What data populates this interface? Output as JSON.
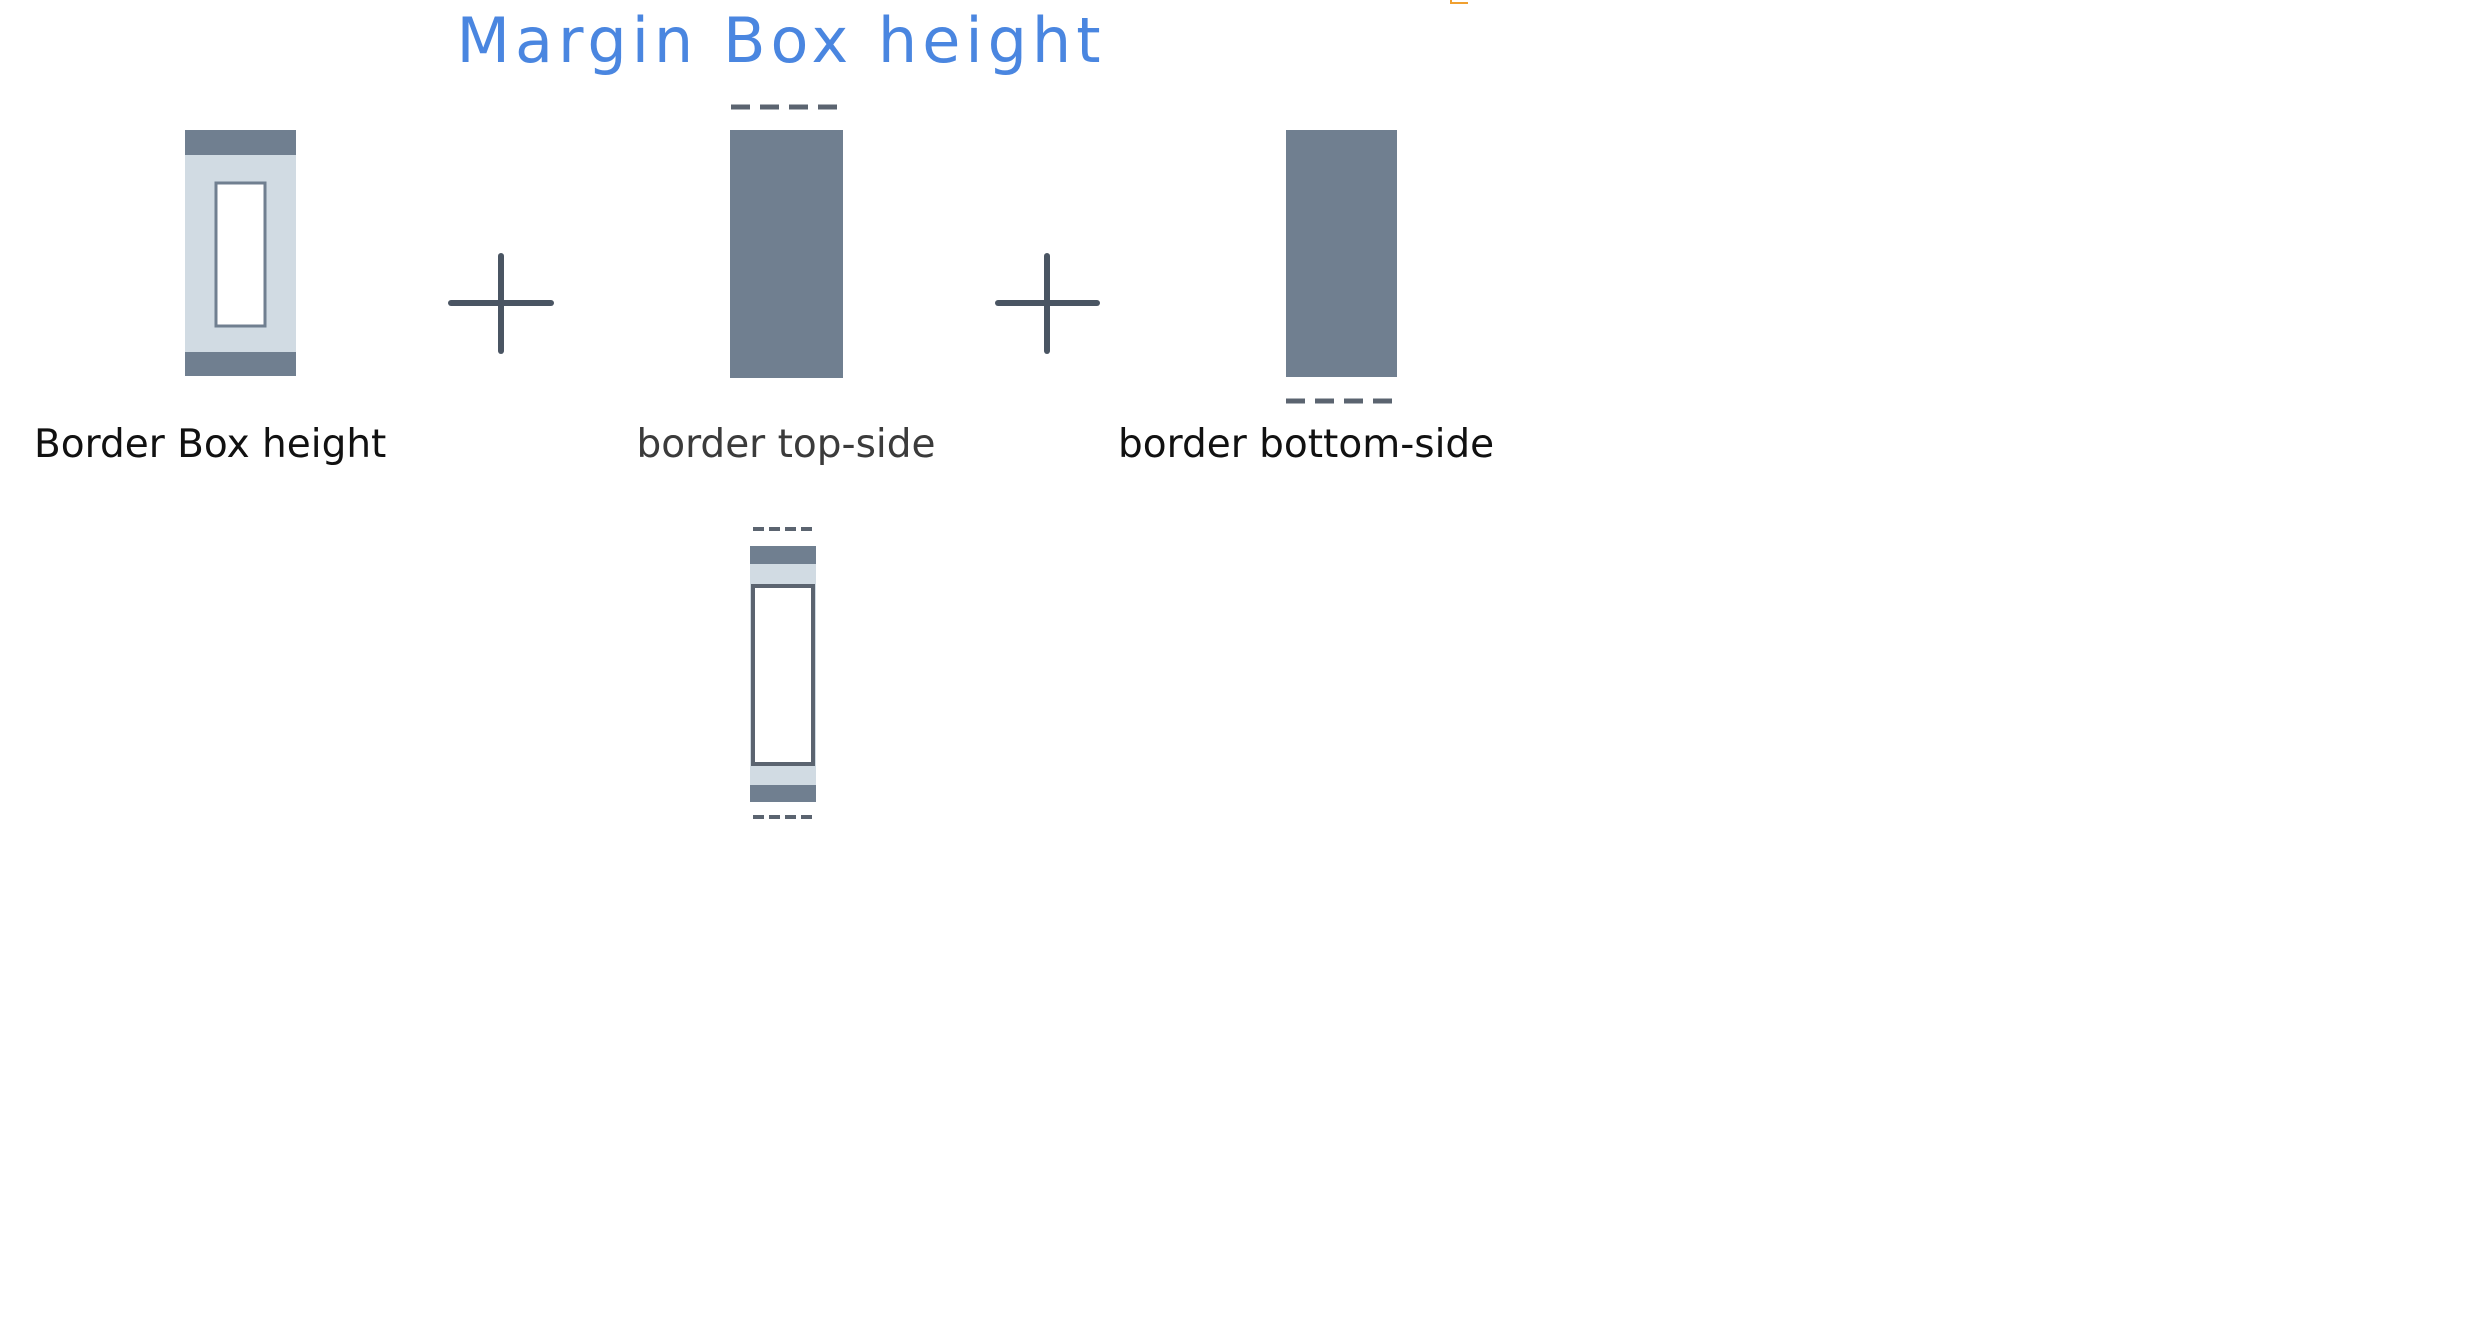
{
  "title": "Margin Box height",
  "labels": {
    "border_box_height": "Border Box height",
    "border_top_side": "border top-side",
    "border_bottom_side": "border bottom-side"
  },
  "operators": [
    "+",
    "+"
  ],
  "colors": {
    "title": "#4a86e0",
    "border_fill": "#707f90",
    "padding_fill": "#d1dbe3",
    "content_fill": "#ffffff",
    "outline": "#5b6470",
    "dash": "#5b6470",
    "plus": "#4a5563"
  }
}
